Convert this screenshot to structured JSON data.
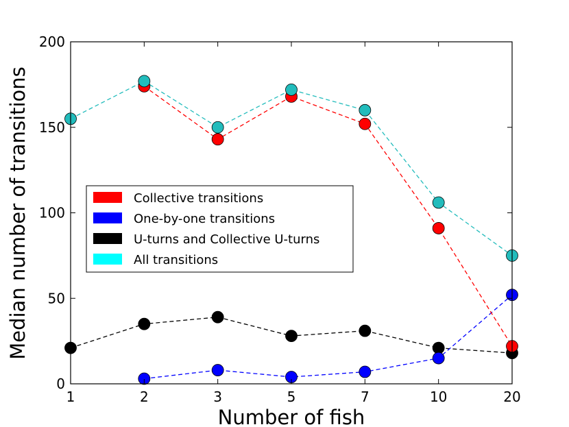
{
  "chart_data": {
    "type": "line",
    "title": "",
    "xlabel": "Number of fish",
    "ylabel": "Median number of transitions",
    "categories": [
      "1",
      "2",
      "3",
      "5",
      "7",
      "10",
      "20"
    ],
    "ylim": [
      0,
      200
    ],
    "yticks": [
      "0",
      "50",
      "100",
      "150",
      "200"
    ],
    "grid": false,
    "legend_position": "center-left",
    "series": [
      {
        "name": "Collective transitions",
        "color": "#ff0000",
        "values": [
          null,
          174,
          143,
          168,
          152,
          91,
          22
        ]
      },
      {
        "name": "One-by-one transitions",
        "color": "#0000ff",
        "values": [
          null,
          3,
          8,
          4,
          7,
          15,
          52
        ]
      },
      {
        "name": "U-turns and Collective U-turns",
        "color": "#000000",
        "values": [
          21,
          35,
          39,
          28,
          31,
          21,
          18
        ]
      },
      {
        "name": "All transitions",
        "color": "#00ffff",
        "marker_color": "#22bcbc",
        "line_color": "#22bcbc",
        "values": [
          155,
          177,
          150,
          172,
          160,
          106,
          75
        ]
      }
    ]
  }
}
